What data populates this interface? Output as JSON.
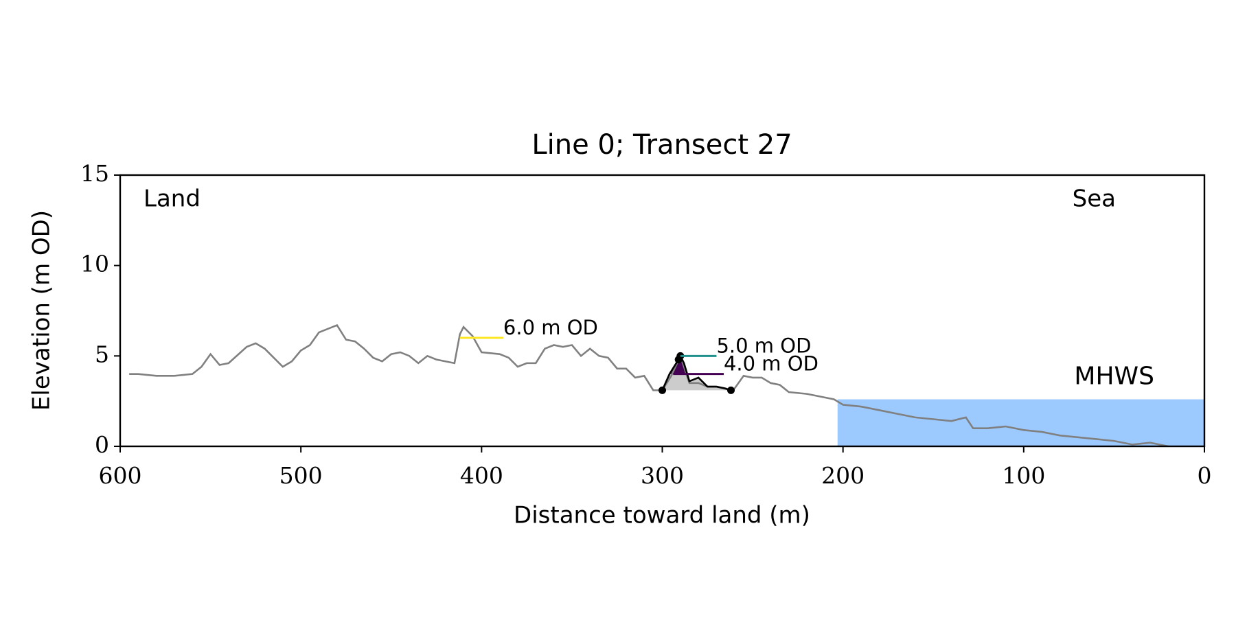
{
  "chart_data": {
    "type": "line",
    "title": "Line 0; Transect 27",
    "xlabel": "Distance toward land (m)",
    "ylabel": "Elevation (m OD)",
    "xlim": [
      600,
      0
    ],
    "ylim": [
      0,
      15
    ],
    "xticks": [
      600,
      500,
      400,
      300,
      200,
      100,
      0
    ],
    "yticks": [
      0,
      5,
      10,
      15
    ],
    "series": [
      {
        "color": "#808080",
        "x": [
          595,
          590,
          580,
          570,
          560,
          555,
          550,
          545,
          540,
          530,
          525,
          520,
          510,
          505,
          500,
          495,
          490,
          480,
          475,
          470,
          465,
          460,
          455,
          450,
          445,
          440,
          435,
          430,
          425,
          420,
          415,
          412,
          410,
          405,
          400,
          390,
          385,
          380,
          375,
          370,
          365,
          360,
          355,
          350,
          345,
          340,
          335,
          330,
          325,
          320,
          315,
          310,
          305,
          300,
          295,
          290,
          285,
          280,
          275,
          270,
          262,
          260,
          255,
          250,
          245,
          240,
          235,
          230,
          220,
          210,
          205,
          200,
          190,
          180,
          170,
          160,
          150,
          140,
          132,
          128,
          120,
          110,
          100,
          90,
          80,
          70,
          60,
          50,
          40,
          30,
          20
        ],
        "values": [
          4.0,
          4.0,
          3.9,
          3.9,
          4.0,
          4.4,
          5.1,
          4.5,
          4.6,
          5.5,
          5.7,
          5.4,
          4.4,
          4.7,
          5.3,
          5.6,
          6.3,
          6.7,
          5.9,
          5.8,
          5.4,
          4.9,
          4.7,
          5.1,
          5.2,
          5.0,
          4.6,
          5.0,
          4.8,
          4.7,
          4.6,
          6.2,
          6.6,
          6.1,
          5.2,
          5.1,
          4.9,
          4.4,
          4.6,
          4.6,
          5.4,
          5.6,
          5.5,
          5.6,
          5.0,
          5.4,
          5.0,
          4.9,
          4.3,
          4.3,
          3.8,
          3.9,
          3.1,
          3.1,
          3.9,
          5.0,
          3.5,
          3.5,
          3.3,
          3.3,
          3.1,
          3.2,
          3.9,
          3.8,
          3.8,
          3.5,
          3.4,
          3.0,
          2.9,
          2.7,
          2.6,
          2.3,
          2.2,
          2.0,
          1.8,
          1.6,
          1.5,
          1.4,
          1.6,
          1.0,
          1.0,
          1.1,
          0.9,
          0.8,
          0.6,
          0.5,
          0.4,
          0.3,
          0.1,
          0.2,
          0.0
        ]
      },
      {
        "color": "#000000",
        "x": [
          300,
          296,
          291,
          290,
          288,
          285,
          280,
          275,
          270,
          265,
          262
        ],
        "values": [
          3.1,
          4.0,
          4.8,
          5.0,
          4.6,
          3.6,
          3.8,
          3.3,
          3.3,
          3.2,
          3.1
        ]
      }
    ],
    "points": {
      "color": "#000000",
      "x": [
        300,
        291,
        290,
        262
      ],
      "values": [
        3.1,
        4.8,
        5.0,
        3.1
      ]
    },
    "dune_fill_color": "#cccccc",
    "levels": [
      {
        "value": 6,
        "label": "6.0 m OD",
        "color": "#fde725",
        "x": [
          412,
          388
        ]
      },
      {
        "value": 5,
        "label": "5.0 m OD",
        "color": "#21918c",
        "x": [
          290,
          270
        ]
      },
      {
        "value": 4,
        "label": "4.0 m OD",
        "color": "#440154",
        "x": [
          294,
          266
        ]
      }
    ],
    "mhws": {
      "value": 2.6,
      "label": "MHWS",
      "color": "#9ccaff",
      "label_color": "#6699cc",
      "x": [
        203,
        0
      ]
    },
    "annotations": [
      "Land",
      "Sea"
    ]
  }
}
